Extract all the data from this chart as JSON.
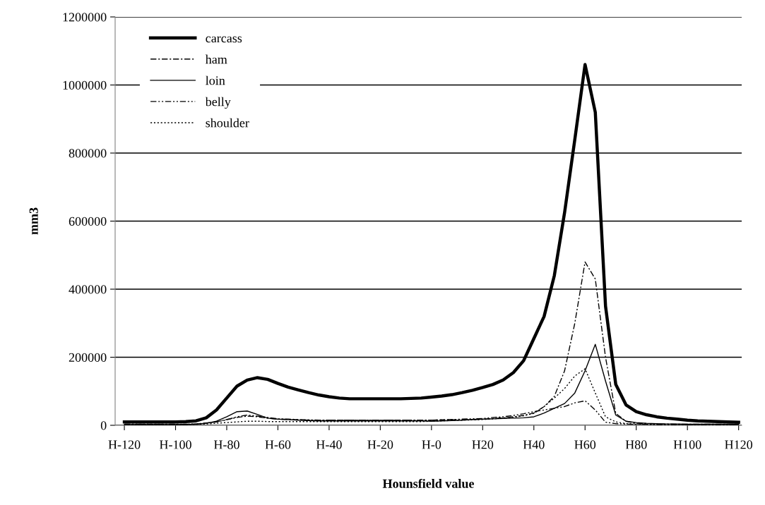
{
  "chart_data": {
    "type": "line",
    "xlabel": "Hounsfield value",
    "ylabel": "mm3",
    "categories": [
      "H-120",
      null,
      null,
      null,
      null,
      "H-100",
      null,
      null,
      null,
      null,
      "H-80",
      null,
      null,
      null,
      null,
      "H-60",
      null,
      null,
      null,
      null,
      "H-40",
      null,
      null,
      null,
      null,
      "H-20",
      null,
      null,
      null,
      null,
      "H-0",
      null,
      null,
      null,
      null,
      "H20",
      null,
      null,
      null,
      null,
      "H40",
      null,
      null,
      null,
      null,
      "H60",
      null,
      null,
      null,
      null,
      "H80",
      null,
      null,
      null,
      null,
      "H100",
      null,
      null,
      null,
      null,
      "H120"
    ],
    "ylim": [
      0,
      1200000
    ],
    "yticks": [
      0,
      200000,
      400000,
      600000,
      800000,
      1000000,
      1200000
    ],
    "grid": "y",
    "legend": "top left",
    "marker": "none",
    "series": [
      {
        "name": "carcass",
        "color": "#000000",
        "line_style": "solid",
        "values": [
          10000,
          10000,
          10000,
          10000,
          10000,
          10000,
          11000,
          13000,
          22000,
          45000,
          80000,
          115000,
          133000,
          140000,
          135000,
          123000,
          112000,
          104000,
          96000,
          89000,
          84000,
          80000,
          78000,
          78000,
          78000,
          78000,
          78000,
          78000,
          79000,
          80000,
          83000,
          86000,
          90000,
          96000,
          103000,
          111000,
          120000,
          133000,
          155000,
          190000,
          255000,
          320000,
          440000,
          625000,
          840000,
          1060000,
          920000,
          350000,
          120000,
          60000,
          40000,
          31000,
          25000,
          21000,
          18000,
          15000,
          13000,
          12000,
          11000,
          10000,
          9000
        ]
      },
      {
        "name": "ham",
        "color": "#000000",
        "line_style": "dashdot",
        "values": [
          3000,
          3000,
          3000,
          3000,
          3000,
          3000,
          3000,
          4000,
          7000,
          10000,
          17000,
          23000,
          27000,
          25000,
          21000,
          18000,
          17000,
          16000,
          15000,
          15000,
          15000,
          15000,
          15000,
          15000,
          15000,
          15000,
          15000,
          15000,
          15000,
          15000,
          15000,
          16000,
          16000,
          17000,
          17000,
          18000,
          20000,
          22000,
          25000,
          29000,
          36000,
          55000,
          85000,
          160000,
          300000,
          480000,
          430000,
          200000,
          35000,
          12000,
          6000,
          5000,
          4000,
          4000,
          3000,
          3000,
          3000,
          3000,
          3000,
          3000,
          3000
        ]
      },
      {
        "name": "loin",
        "color": "#000000",
        "line_style": "solid",
        "values": [
          2000,
          2000,
          2000,
          2000,
          2000,
          2000,
          2000,
          3000,
          6000,
          12000,
          25000,
          40000,
          42000,
          32000,
          21000,
          18000,
          17000,
          15000,
          14000,
          13000,
          13000,
          13000,
          13000,
          13000,
          13000,
          13000,
          13000,
          13000,
          13000,
          13000,
          12000,
          13000,
          14000,
          15000,
          17000,
          18000,
          19000,
          20000,
          21000,
          22000,
          25000,
          36000,
          50000,
          64000,
          95000,
          160000,
          238000,
          130000,
          30000,
          12000,
          8000,
          6000,
          5000,
          4000,
          4000,
          3000,
          3000,
          3000,
          3000,
          3000,
          3000
        ]
      },
      {
        "name": "belly",
        "color": "#000000",
        "line_style": "dashdotdot",
        "values": [
          3000,
          3000,
          3000,
          3000,
          3000,
          3000,
          3000,
          4000,
          6000,
          10000,
          16000,
          25000,
          30000,
          27000,
          23000,
          19000,
          18000,
          17000,
          16000,
          15000,
          15000,
          15000,
          15000,
          15000,
          15000,
          15000,
          15000,
          15000,
          15000,
          15000,
          15000,
          16000,
          17000,
          18000,
          19000,
          20000,
          23000,
          25000,
          29000,
          34000,
          40000,
          45000,
          50000,
          55000,
          66000,
          72000,
          45000,
          9000,
          5000,
          4000,
          3000,
          3000,
          2000,
          2000,
          2000,
          2000,
          2000,
          2000,
          2000,
          2000,
          2000
        ]
      },
      {
        "name": "shoulder",
        "color": "#000000",
        "line_style": "dotted",
        "values": [
          2000,
          2000,
          2000,
          2000,
          2000,
          2000,
          2000,
          3000,
          4000,
          6000,
          8000,
          10000,
          12000,
          12000,
          11000,
          11000,
          11000,
          11000,
          11000,
          11000,
          11000,
          11000,
          11000,
          11000,
          11000,
          11000,
          11000,
          11000,
          11000,
          11000,
          12000,
          13000,
          14000,
          15000,
          16000,
          17000,
          19000,
          21000,
          24000,
          28000,
          35000,
          55000,
          80000,
          108000,
          145000,
          166000,
          95000,
          25000,
          10000,
          5000,
          4000,
          3000,
          3000,
          2000,
          2000,
          2000,
          2000,
          2000,
          2000,
          2000,
          2000
        ]
      }
    ]
  }
}
